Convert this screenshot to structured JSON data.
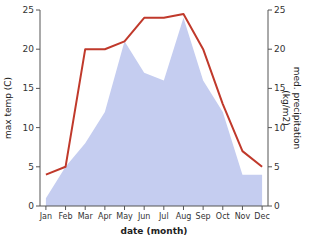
{
  "chart_data": {
    "type": "line",
    "categories": [
      "Jan",
      "Feb",
      "Mar",
      "Apr",
      "May",
      "Jun",
      "Jul",
      "Aug",
      "Sep",
      "Oct",
      "Nov",
      "Dec"
    ],
    "series": [
      {
        "type": "area",
        "axis": "y2",
        "color": "#c5cdf0",
        "values": [
          1,
          5,
          8,
          12,
          21,
          17,
          16,
          24,
          16,
          12,
          4,
          4
        ]
      },
      {
        "type": "line",
        "color": "#c0392b",
        "values": [
          4,
          5,
          20,
          20,
          21,
          24,
          24,
          24.5,
          20,
          13,
          7,
          5
        ]
      }
    ],
    "xlabel": "date (month)",
    "ylabel": "max temp (C)",
    "y2label": "med. precipitation\n(kg/m2)",
    "ylim": [
      0,
      25
    ],
    "yticks": [
      0,
      5,
      10,
      15,
      20,
      25
    ],
    "y2lim": [
      0,
      25
    ],
    "y2ticks": [
      0,
      5,
      10,
      15,
      20,
      25
    ],
    "grid": false
  }
}
